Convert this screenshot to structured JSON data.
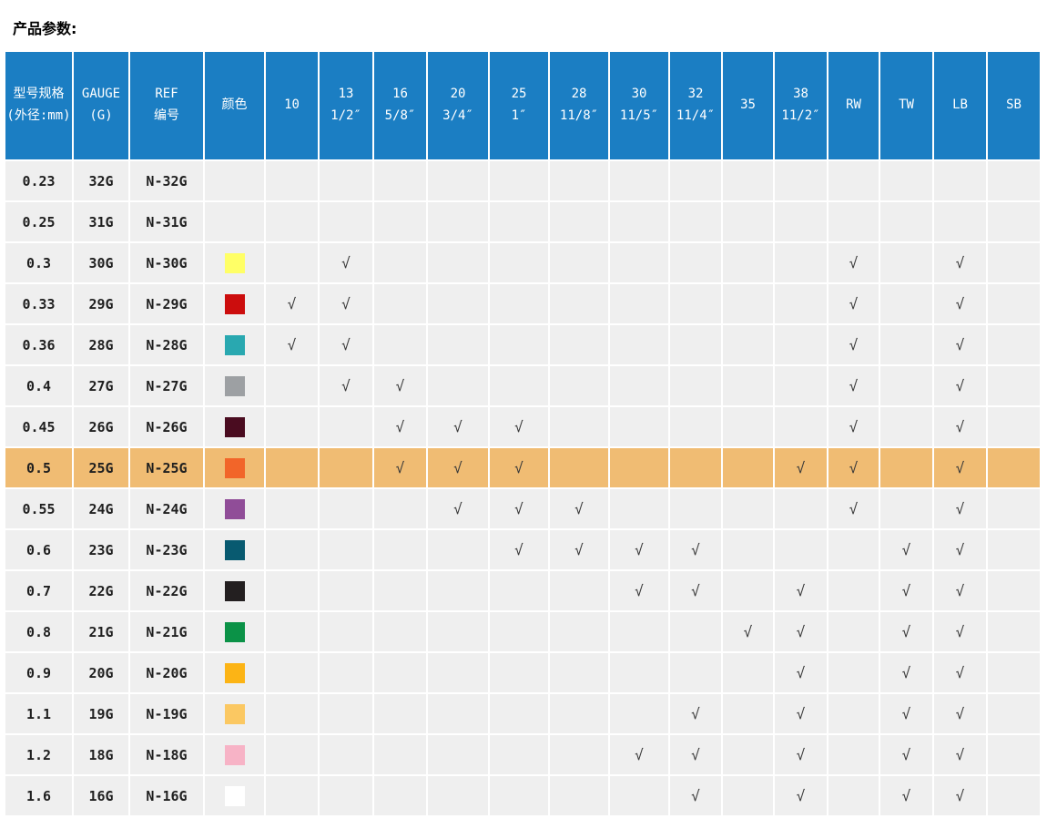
{
  "title": "产品参数:",
  "table": {
    "check_glyph": "√",
    "colors": {
      "header_bg": "#1b7ec3",
      "header_text": "#ffffff",
      "cell_bg": "#efefef",
      "highlight_bg": "#f0bc73",
      "grid": "#ffffff",
      "text": "#1f1f1f",
      "check": "#3a3a3a"
    },
    "columns": [
      {
        "key": "size",
        "label_lines": [
          "型号规格",
          "(外径:mm)"
        ]
      },
      {
        "key": "gauge",
        "label_lines": [
          "GAUGE",
          "(G)"
        ]
      },
      {
        "key": "ref",
        "label_lines": [
          "REF",
          "编号"
        ]
      },
      {
        "key": "color",
        "label_lines": [
          "颜色"
        ]
      },
      {
        "key": "10",
        "label_lines": [
          "10"
        ]
      },
      {
        "key": "13",
        "label_lines": [
          "13",
          "1/2″"
        ]
      },
      {
        "key": "16",
        "label_lines": [
          "16",
          "5/8″"
        ]
      },
      {
        "key": "20",
        "label_lines": [
          "20",
          "3/4″"
        ]
      },
      {
        "key": "25",
        "label_lines": [
          "25",
          "1″"
        ]
      },
      {
        "key": "28",
        "label_lines": [
          "28",
          "11/8″"
        ]
      },
      {
        "key": "30",
        "label_lines": [
          "30",
          "11/5″"
        ]
      },
      {
        "key": "32",
        "label_lines": [
          "32",
          "11/4″"
        ]
      },
      {
        "key": "35",
        "label_lines": [
          "35"
        ]
      },
      {
        "key": "38",
        "label_lines": [
          "38",
          "11/2″"
        ]
      },
      {
        "key": "RW",
        "label_lines": [
          "RW"
        ]
      },
      {
        "key": "TW",
        "label_lines": [
          "TW"
        ]
      },
      {
        "key": "LB",
        "label_lines": [
          "LB"
        ]
      },
      {
        "key": "SB",
        "label_lines": [
          "SB"
        ]
      }
    ],
    "rows": [
      {
        "size": "0.23",
        "gauge": "32G",
        "ref": "N-32G",
        "color": null,
        "highlighted": false,
        "checks": []
      },
      {
        "size": "0.25",
        "gauge": "31G",
        "ref": "N-31G",
        "color": null,
        "highlighted": false,
        "checks": []
      },
      {
        "size": "0.3",
        "gauge": "30G",
        "ref": "N-30G",
        "color": "#ffff66",
        "highlighted": false,
        "checks": [
          "13",
          "RW",
          "LB"
        ]
      },
      {
        "size": "0.33",
        "gauge": "29G",
        "ref": "N-29G",
        "color": "#cc0d0d",
        "highlighted": false,
        "checks": [
          "10",
          "13",
          "RW",
          "LB"
        ]
      },
      {
        "size": "0.36",
        "gauge": "28G",
        "ref": "N-28G",
        "color": "#29a8b0",
        "highlighted": false,
        "checks": [
          "10",
          "13",
          "RW",
          "LB"
        ]
      },
      {
        "size": "0.4",
        "gauge": "27G",
        "ref": "N-27G",
        "color": "#9da0a3",
        "highlighted": false,
        "checks": [
          "13",
          "16",
          "RW",
          "LB"
        ]
      },
      {
        "size": "0.45",
        "gauge": "26G",
        "ref": "N-26G",
        "color": "#4a0c20",
        "highlighted": false,
        "checks": [
          "16",
          "20",
          "25",
          "RW",
          "LB"
        ]
      },
      {
        "size": "0.5",
        "gauge": "25G",
        "ref": "N-25G",
        "color": "#f26529",
        "highlighted": true,
        "checks": [
          "16",
          "20",
          "25",
          "38",
          "RW",
          "LB"
        ]
      },
      {
        "size": "0.55",
        "gauge": "24G",
        "ref": "N-24G",
        "color": "#904d98",
        "highlighted": false,
        "checks": [
          "20",
          "25",
          "28",
          "RW",
          "LB"
        ]
      },
      {
        "size": "0.6",
        "gauge": "23G",
        "ref": "N-23G",
        "color": "#085a70",
        "highlighted": false,
        "checks": [
          "25",
          "28",
          "30",
          "32",
          "TW",
          "LB"
        ]
      },
      {
        "size": "0.7",
        "gauge": "22G",
        "ref": "N-22G",
        "color": "#231f20",
        "highlighted": false,
        "checks": [
          "30",
          "32",
          "38",
          "TW",
          "LB"
        ]
      },
      {
        "size": "0.8",
        "gauge": "21G",
        "ref": "N-21G",
        "color": "#0b9247",
        "highlighted": false,
        "checks": [
          "35",
          "38",
          "TW",
          "LB"
        ]
      },
      {
        "size": "0.9",
        "gauge": "20G",
        "ref": "N-20G",
        "color": "#fcb415",
        "highlighted": false,
        "checks": [
          "38",
          "TW",
          "LB"
        ]
      },
      {
        "size": "1.1",
        "gauge": "19G",
        "ref": "N-19G",
        "color": "#fbc862",
        "highlighted": false,
        "checks": [
          "32",
          "38",
          "TW",
          "LB"
        ]
      },
      {
        "size": "1.2",
        "gauge": "18G",
        "ref": "N-18G",
        "color": "#f7b3c6",
        "highlighted": false,
        "checks": [
          "30",
          "32",
          "38",
          "TW",
          "LB"
        ]
      },
      {
        "size": "1.6",
        "gauge": "16G",
        "ref": "N-16G",
        "color": "#ffffff",
        "highlighted": false,
        "checks": [
          "32",
          "38",
          "TW",
          "LB"
        ]
      }
    ]
  }
}
